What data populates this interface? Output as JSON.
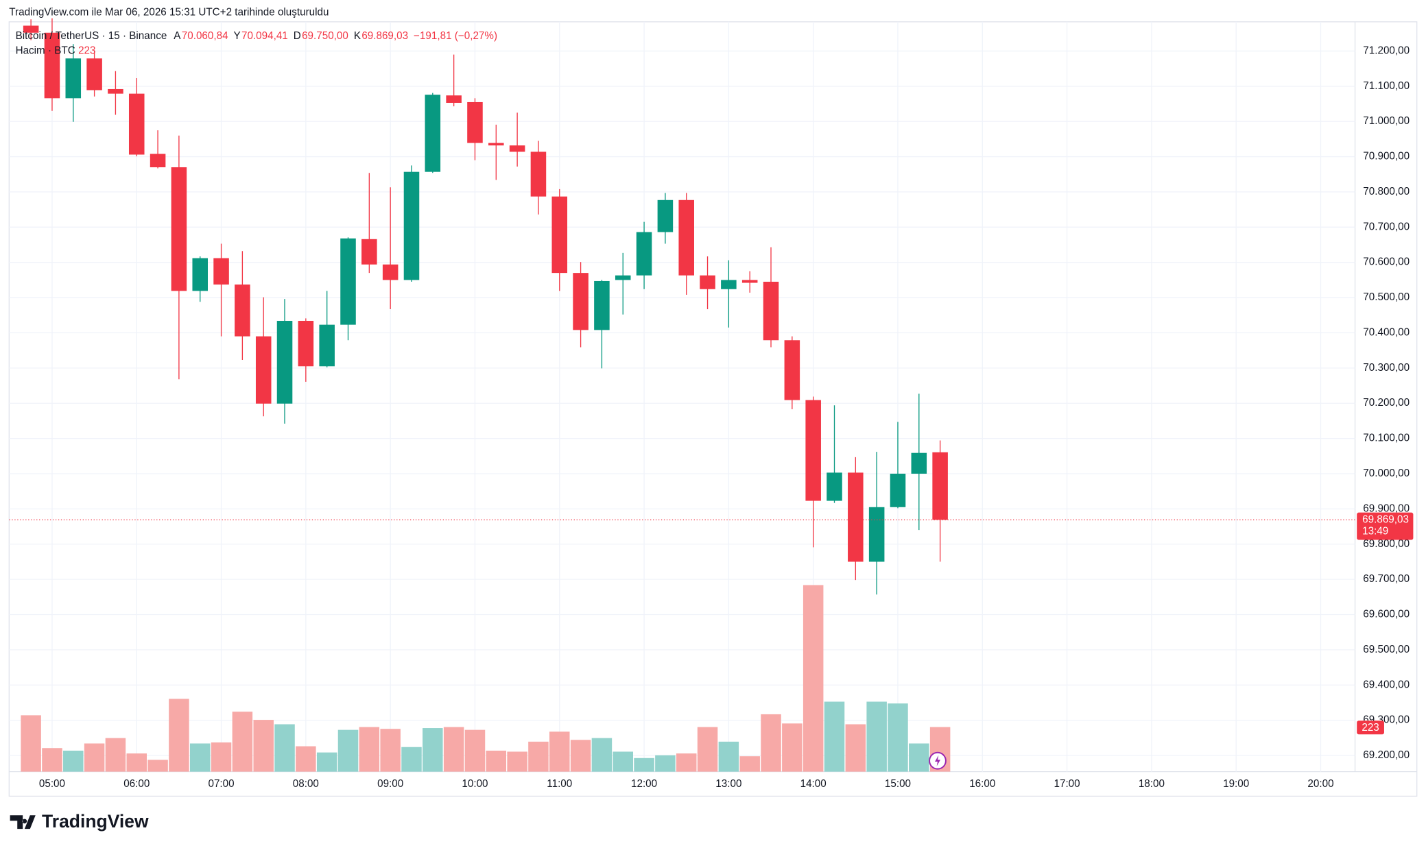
{
  "header": {
    "credit": "TradingView.com ile Mar 06, 2026 15:31 UTC+2 tarihinde oluşturuldu"
  },
  "brand": "TradingView",
  "chart_data": {
    "type": "candlestick",
    "symbol": "Bitcoin / TetherUS · 15 · Binance",
    "ohlc_legend": [
      {
        "key": "A",
        "text": "70.060,84"
      },
      {
        "key": "Y",
        "text": "70.094,41"
      },
      {
        "key": "D",
        "text": "69.750,00"
      },
      {
        "key": "K",
        "text": "69.869,03"
      }
    ],
    "change_text": "−191,81 (−0,27%)",
    "volume_legend": {
      "name": "Hacim · BTC",
      "text": "223"
    },
    "last_price": 69869.03,
    "last_price_label": "69.869,03",
    "countdown": "13:49",
    "last_volume_label": "223",
    "up_color": "#089981",
    "down_color": "#f23645",
    "up_volume_color": "#92d2cc",
    "down_volume_color": "#f7a9a7",
    "grid": true,
    "open": [
      71272,
      71252,
      71066,
      71179,
      71092,
      71079,
      70908,
      70870,
      70519,
      70612,
      70537,
      70390,
      70199,
      70434,
      70305,
      70423,
      70666,
      70594,
      70550,
      70857,
      71074,
      71055,
      70939,
      70932,
      70914,
      70787,
      70570,
      70408,
      70550,
      70563,
      70686,
      70777,
      70563,
      70524,
      70550,
      70545,
      70379,
      70209,
      69923,
      70003,
      69750,
      69905,
      70000,
      70060.84
    ],
    "high": [
      71290,
      71293,
      71220,
      71200,
      71143,
      71123,
      70975,
      70960,
      70617,
      70653,
      70632,
      70501,
      70496,
      70441,
      70519,
      70671,
      70854,
      70813,
      70875,
      71081,
      71190,
      71066,
      70991,
      71025,
      70945,
      70808,
      70601,
      70550,
      70627,
      70715,
      70797,
      70797,
      70617,
      70606,
      70575,
      70643,
      70390,
      70219,
      70194,
      70047,
      70062,
      70147,
      70227,
      70094.41
    ],
    "low": [
      71231,
      71030,
      70999,
      71071,
      71019,
      70901,
      70867,
      70268,
      70488,
      70390,
      70323,
      70163,
      70142,
      70261,
      70302,
      70379,
      70570,
      70467,
      70545,
      70854,
      71043,
      70890,
      70834,
      70872,
      70736,
      70519,
      70359,
      70299,
      70452,
      70524,
      70653,
      70508,
      70467,
      70415,
      70514,
      70359,
      70183,
      69791,
      69917,
      69698,
      69657,
      69902,
      69840,
      69750
    ],
    "close": [
      71252,
      71066,
      71179,
      71089,
      71079,
      70906,
      70870,
      70519,
      70612,
      70537,
      70390,
      70199,
      70434,
      70305,
      70423,
      70668,
      70594,
      70550,
      70857,
      71076,
      71053,
      70939,
      70932,
      70914,
      70787,
      70570,
      70408,
      70547,
      70563,
      70686,
      70777,
      70563,
      70524,
      70550,
      70542,
      70379,
      70209,
      69923,
      70003,
      69750,
      69905,
      70000,
      70059,
      69869.03
    ],
    "volume": [
      282,
      118,
      105,
      141,
      168,
      91,
      59,
      364,
      141,
      146,
      300,
      259,
      237,
      127,
      96,
      209,
      223,
      214,
      123,
      218,
      223,
      209,
      105,
      100,
      150,
      200,
      159,
      168,
      100,
      68,
      82,
      91,
      223,
      150,
      77,
      287,
      241,
      933,
      350,
      237,
      350,
      341,
      141,
      223
    ],
    "ylim": [
      69154,
      71283
    ],
    "volume_lim": [
      0,
      1000
    ],
    "yticks": [
      {
        "value": 69200,
        "label": "69.200,00"
      },
      {
        "value": 69300,
        "label": "69.300,00"
      },
      {
        "value": 69400,
        "label": "69.400,00"
      },
      {
        "value": 69500,
        "label": "69.500,00"
      },
      {
        "value": 69600,
        "label": "69.600,00"
      },
      {
        "value": 69700,
        "label": "69.700,00"
      },
      {
        "value": 69800,
        "label": "69.800,00"
      },
      {
        "value": 69900,
        "label": "69.900,00"
      },
      {
        "value": 70000,
        "label": "70.000,00"
      },
      {
        "value": 70100,
        "label": "70.100,00"
      },
      {
        "value": 70200,
        "label": "70.200,00"
      },
      {
        "value": 70300,
        "label": "70.300,00"
      },
      {
        "value": 70400,
        "label": "70.400,00"
      },
      {
        "value": 70500,
        "label": "70.500,00"
      },
      {
        "value": 70600,
        "label": "70.600,00"
      },
      {
        "value": 70700,
        "label": "70.700,00"
      },
      {
        "value": 70800,
        "label": "70.800,00"
      },
      {
        "value": 70900,
        "label": "70.900,00"
      },
      {
        "value": 71000,
        "label": "71.000,00"
      },
      {
        "value": 71100,
        "label": "71.100,00"
      },
      {
        "value": 71200,
        "label": "71.200,00"
      }
    ],
    "xticks": [
      "05:00",
      "06:00",
      "07:00",
      "08:00",
      "09:00",
      "10:00",
      "11:00",
      "12:00",
      "13:00",
      "14:00",
      "15:00",
      "16:00",
      "17:00",
      "18:00",
      "19:00",
      "20:00"
    ]
  }
}
